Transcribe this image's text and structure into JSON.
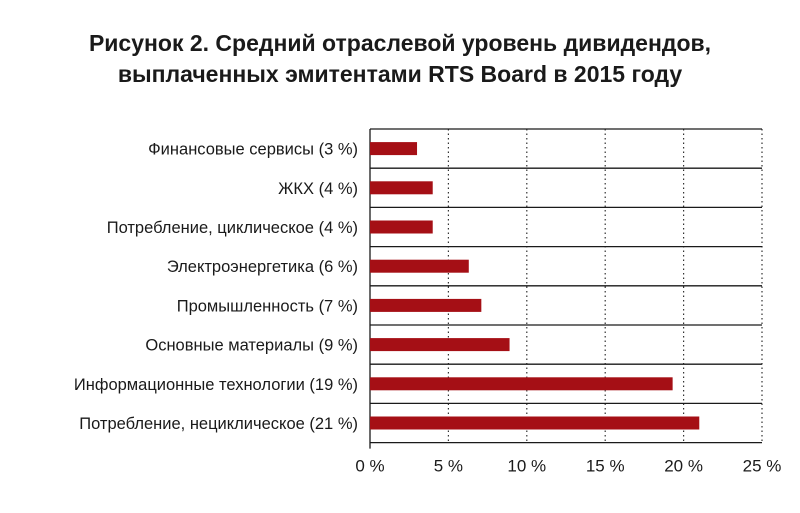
{
  "chart_data": {
    "type": "bar",
    "orientation": "horizontal",
    "title": "Рисунок 2. Средний отраслевой уровень дивидендов,",
    "subtitle": "выплаченных эмитентами RTS Board в 2015 году",
    "categories": [
      "Финансовые сервисы (3 %)",
      "ЖКХ (4 %)",
      "Потребление, циклическое (4 %)",
      "Электроэнергетика (6 %)",
      "Промышленность (7 %)",
      "Основные материалы (9 %)",
      "Информационные технологии (19 %)",
      "Потребление, нециклическое (21 %)"
    ],
    "values": [
      3.0,
      4.0,
      4.0,
      6.3,
      7.1,
      8.9,
      19.3,
      21.0
    ],
    "xlim": [
      0,
      25
    ],
    "xticks": [
      "0 %",
      "5 %",
      "10 %",
      "15 %",
      "20 %",
      "25 %"
    ],
    "xtick_values": [
      0,
      5,
      10,
      15,
      20,
      25
    ],
    "grid": "vertical-dotted",
    "bar_color": "#a50f15"
  }
}
